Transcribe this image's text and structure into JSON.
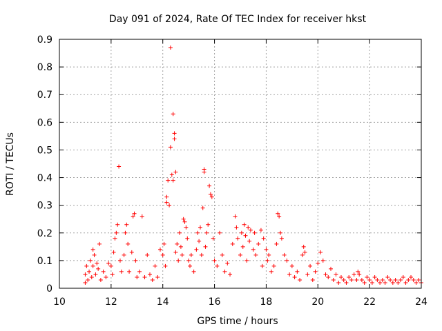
{
  "chart_data": {
    "type": "scatter",
    "title": "Day 091 of 2024, Rate Of TEC Index for receiver hkst",
    "xlabel": "GPS time / hours",
    "ylabel": "ROTI / TECUs",
    "xlim": [
      10,
      24
    ],
    "ylim": [
      0,
      0.9
    ],
    "xticks": [
      "10",
      "12",
      "14",
      "16",
      "18",
      "20",
      "22",
      "24"
    ],
    "yticks": [
      "0",
      "0.1",
      "0.2",
      "0.3",
      "0.4",
      "0.5",
      "0.6",
      "0.7",
      "0.8",
      "0.9"
    ],
    "grid": true,
    "marker": "plus",
    "color": "#ff0000",
    "points": [
      [
        11.0,
        0.02
      ],
      [
        11.0,
        0.05
      ],
      [
        11.05,
        0.08
      ],
      [
        11.1,
        0.03
      ],
      [
        11.15,
        0.06
      ],
      [
        11.2,
        0.1
      ],
      [
        11.25,
        0.04
      ],
      [
        11.3,
        0.08
      ],
      [
        11.3,
        0.14
      ],
      [
        11.35,
        0.12
      ],
      [
        11.4,
        0.05
      ],
      [
        11.45,
        0.09
      ],
      [
        11.5,
        0.07
      ],
      [
        11.55,
        0.16
      ],
      [
        11.6,
        0.03
      ],
      [
        11.7,
        0.06
      ],
      [
        11.8,
        0.04
      ],
      [
        11.9,
        0.09
      ],
      [
        12.0,
        0.08
      ],
      [
        12.05,
        0.05
      ],
      [
        12.1,
        0.13
      ],
      [
        12.15,
        0.18
      ],
      [
        12.2,
        0.2
      ],
      [
        12.25,
        0.23
      ],
      [
        12.3,
        0.44
      ],
      [
        12.35,
        0.1
      ],
      [
        12.4,
        0.06
      ],
      [
        12.5,
        0.12
      ],
      [
        12.55,
        0.2
      ],
      [
        12.6,
        0.23
      ],
      [
        12.65,
        0.16
      ],
      [
        12.7,
        0.06
      ],
      [
        12.8,
        0.13
      ],
      [
        12.85,
        0.26
      ],
      [
        12.9,
        0.27
      ],
      [
        12.95,
        0.1
      ],
      [
        13.0,
        0.04
      ],
      [
        13.1,
        0.06
      ],
      [
        13.2,
        0.26
      ],
      [
        13.3,
        0.04
      ],
      [
        13.4,
        0.12
      ],
      [
        13.5,
        0.05
      ],
      [
        13.6,
        0.03
      ],
      [
        13.7,
        0.08
      ],
      [
        13.8,
        0.04
      ],
      [
        13.9,
        0.14
      ],
      [
        14.0,
        0.12
      ],
      [
        14.05,
        0.16
      ],
      [
        14.1,
        0.08
      ],
      [
        14.15,
        0.31
      ],
      [
        14.15,
        0.33
      ],
      [
        14.2,
        0.39
      ],
      [
        14.25,
        0.3
      ],
      [
        14.3,
        0.51
      ],
      [
        14.3,
        0.87
      ],
      [
        14.35,
        0.41
      ],
      [
        14.4,
        0.63
      ],
      [
        14.4,
        0.39
      ],
      [
        14.45,
        0.56
      ],
      [
        14.45,
        0.54
      ],
      [
        14.5,
        0.42
      ],
      [
        14.5,
        0.13
      ],
      [
        14.55,
        0.16
      ],
      [
        14.6,
        0.1
      ],
      [
        14.65,
        0.2
      ],
      [
        14.7,
        0.15
      ],
      [
        14.75,
        0.12
      ],
      [
        14.8,
        0.25
      ],
      [
        14.85,
        0.24
      ],
      [
        14.9,
        0.22
      ],
      [
        14.95,
        0.18
      ],
      [
        15.0,
        0.1
      ],
      [
        15.05,
        0.08
      ],
      [
        15.1,
        0.12
      ],
      [
        15.2,
        0.06
      ],
      [
        15.3,
        0.14
      ],
      [
        15.35,
        0.2
      ],
      [
        15.4,
        0.17
      ],
      [
        15.45,
        0.22
      ],
      [
        15.5,
        0.12
      ],
      [
        15.55,
        0.29
      ],
      [
        15.6,
        0.43
      ],
      [
        15.6,
        0.42
      ],
      [
        15.65,
        0.15
      ],
      [
        15.7,
        0.2
      ],
      [
        15.75,
        0.23
      ],
      [
        15.8,
        0.37
      ],
      [
        15.85,
        0.34
      ],
      [
        15.9,
        0.33
      ],
      [
        15.95,
        0.18
      ],
      [
        16.0,
        0.1
      ],
      [
        16.1,
        0.08
      ],
      [
        16.2,
        0.2
      ],
      [
        16.3,
        0.12
      ],
      [
        16.4,
        0.06
      ],
      [
        16.5,
        0.09
      ],
      [
        16.6,
        0.05
      ],
      [
        16.7,
        0.16
      ],
      [
        16.8,
        0.26
      ],
      [
        16.85,
        0.22
      ],
      [
        16.9,
        0.18
      ],
      [
        17.0,
        0.12
      ],
      [
        17.05,
        0.2
      ],
      [
        17.1,
        0.15
      ],
      [
        17.15,
        0.23
      ],
      [
        17.2,
        0.19
      ],
      [
        17.25,
        0.1
      ],
      [
        17.3,
        0.22
      ],
      [
        17.35,
        0.17
      ],
      [
        17.4,
        0.21
      ],
      [
        17.5,
        0.14
      ],
      [
        17.55,
        0.2
      ],
      [
        17.6,
        0.12
      ],
      [
        17.7,
        0.16
      ],
      [
        17.8,
        0.21
      ],
      [
        17.85,
        0.08
      ],
      [
        17.9,
        0.18
      ],
      [
        18.0,
        0.14
      ],
      [
        18.05,
        0.1
      ],
      [
        18.1,
        0.12
      ],
      [
        18.2,
        0.06
      ],
      [
        18.3,
        0.08
      ],
      [
        18.4,
        0.16
      ],
      [
        18.45,
        0.27
      ],
      [
        18.5,
        0.26
      ],
      [
        18.55,
        0.2
      ],
      [
        18.6,
        0.18
      ],
      [
        18.7,
        0.12
      ],
      [
        18.8,
        0.1
      ],
      [
        18.9,
        0.05
      ],
      [
        19.0,
        0.08
      ],
      [
        19.1,
        0.04
      ],
      [
        19.2,
        0.06
      ],
      [
        19.3,
        0.03
      ],
      [
        19.4,
        0.12
      ],
      [
        19.45,
        0.15
      ],
      [
        19.5,
        0.13
      ],
      [
        19.6,
        0.05
      ],
      [
        19.7,
        0.08
      ],
      [
        19.8,
        0.03
      ],
      [
        19.9,
        0.06
      ],
      [
        20.0,
        0.09
      ],
      [
        20.1,
        0.13
      ],
      [
        20.2,
        0.1
      ],
      [
        20.3,
        0.05
      ],
      [
        20.4,
        0.04
      ],
      [
        20.5,
        0.07
      ],
      [
        20.6,
        0.03
      ],
      [
        20.7,
        0.05
      ],
      [
        20.8,
        0.02
      ],
      [
        20.9,
        0.04
      ],
      [
        21.0,
        0.03
      ],
      [
        21.1,
        0.02
      ],
      [
        21.2,
        0.04
      ],
      [
        21.3,
        0.03
      ],
      [
        21.4,
        0.05
      ],
      [
        21.5,
        0.03
      ],
      [
        21.55,
        0.06
      ],
      [
        21.6,
        0.05
      ],
      [
        21.7,
        0.03
      ],
      [
        21.8,
        0.02
      ],
      [
        21.9,
        0.04
      ],
      [
        22.0,
        0.03
      ],
      [
        22.1,
        0.02
      ],
      [
        22.2,
        0.04
      ],
      [
        22.3,
        0.03
      ],
      [
        22.4,
        0.02
      ],
      [
        22.5,
        0.03
      ],
      [
        22.6,
        0.02
      ],
      [
        22.7,
        0.04
      ],
      [
        22.8,
        0.03
      ],
      [
        22.9,
        0.02
      ],
      [
        23.0,
        0.03
      ],
      [
        23.1,
        0.02
      ],
      [
        23.2,
        0.03
      ],
      [
        23.3,
        0.04
      ],
      [
        23.4,
        0.02
      ],
      [
        23.5,
        0.03
      ],
      [
        23.6,
        0.04
      ],
      [
        23.7,
        0.03
      ],
      [
        23.8,
        0.02
      ],
      [
        23.9,
        0.03
      ],
      [
        24.0,
        0.02
      ]
    ]
  }
}
